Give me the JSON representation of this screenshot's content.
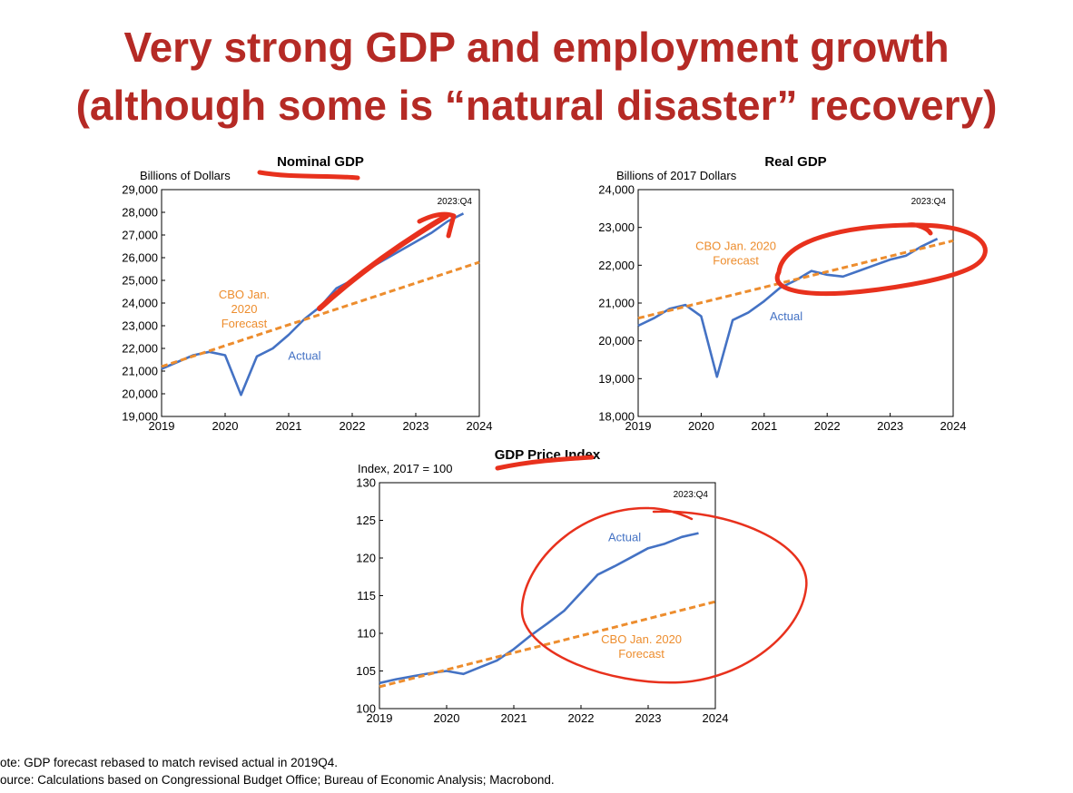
{
  "title": {
    "line1": "Very strong GDP and employment growth",
    "line2": "(although some is “natural disaster” recovery)"
  },
  "colors": {
    "title": "#b52a25",
    "actual": "#4472c4",
    "forecast": "#ed8d2e",
    "annotation": "#e8311d"
  },
  "chart_data": [
    {
      "id": "nominal",
      "type": "line",
      "title": "Nominal GDP",
      "ylabel": "Billions of Dollars",
      "xlim": [
        2019,
        2024
      ],
      "ylim": [
        19000,
        29000
      ],
      "yticks": [
        19000,
        20000,
        21000,
        22000,
        23000,
        24000,
        25000,
        26000,
        27000,
        28000,
        29000
      ],
      "ytick_labels": [
        "19,000",
        "20,000",
        "21,000",
        "22,000",
        "23,000",
        "24,000",
        "25,000",
        "26,000",
        "27,000",
        "28,000",
        "29,000"
      ],
      "xticks": [
        2019,
        2020,
        2021,
        2022,
        2023,
        2024
      ],
      "xtick_labels": [
        "2019",
        "2020",
        "2021",
        "2022",
        "2023",
        "2024"
      ],
      "corner_label": "2023:Q4",
      "series": [
        {
          "label": "Actual",
          "style": "solid",
          "x": [
            2019.0,
            2019.25,
            2019.5,
            2019.75,
            2020.0,
            2020.25,
            2020.5,
            2020.75,
            2021.0,
            2021.25,
            2021.5,
            2021.75,
            2022.0,
            2022.25,
            2022.5,
            2022.75,
            2023.0,
            2023.25,
            2023.5,
            2023.75
          ],
          "y": [
            21100,
            21400,
            21700,
            21850,
            21700,
            19950,
            21650,
            22000,
            22600,
            23300,
            23850,
            24650,
            25000,
            25500,
            25900,
            26300,
            26700,
            27100,
            27600,
            27950
          ]
        },
        {
          "label": "CBO Jan. 2020 Forecast",
          "style": "dashed",
          "x": [
            2019.0,
            2024.0
          ],
          "y": [
            21200,
            25800
          ]
        }
      ],
      "annotations": [
        {
          "series": "Actual",
          "lines": [
            "Actual"
          ],
          "x": 2021.25,
          "y": 21500
        },
        {
          "series": "CBO Jan. 2020 Forecast",
          "lines": [
            "CBO Jan.",
            "2020",
            "Forecast"
          ],
          "x": 2020.3,
          "y": 24200
        }
      ]
    },
    {
      "id": "real",
      "type": "line",
      "title": "Real GDP",
      "ylabel": "Billions of 2017 Dollars",
      "xlim": [
        2019,
        2024
      ],
      "ylim": [
        18000,
        24000
      ],
      "yticks": [
        18000,
        19000,
        20000,
        21000,
        22000,
        23000,
        24000
      ],
      "ytick_labels": [
        "18,000",
        "19,000",
        "20,000",
        "21,000",
        "22,000",
        "23,000",
        "24,000"
      ],
      "xticks": [
        2019,
        2020,
        2021,
        2022,
        2023,
        2024
      ],
      "xtick_labels": [
        "2019",
        "2020",
        "2021",
        "2022",
        "2023",
        "2024"
      ],
      "corner_label": "2023:Q4",
      "series": [
        {
          "label": "Actual",
          "style": "solid",
          "x": [
            2019.0,
            2019.25,
            2019.5,
            2019.75,
            2020.0,
            2020.25,
            2020.5,
            2020.75,
            2021.0,
            2021.25,
            2021.5,
            2021.75,
            2022.0,
            2022.25,
            2022.5,
            2022.75,
            2023.0,
            2023.25,
            2023.5,
            2023.75
          ],
          "y": [
            20400,
            20600,
            20850,
            20950,
            20650,
            19050,
            20550,
            20750,
            21050,
            21400,
            21600,
            21850,
            21750,
            21700,
            21850,
            22000,
            22150,
            22250,
            22500,
            22700
          ]
        },
        {
          "label": "CBO Jan. 2020 Forecast",
          "style": "dashed",
          "x": [
            2019.0,
            2024.0
          ],
          "y": [
            20600,
            22650
          ]
        }
      ],
      "annotations": [
        {
          "series": "Actual",
          "lines": [
            "Actual"
          ],
          "x": 2021.35,
          "y": 20550
        },
        {
          "series": "CBO Jan. 2020 Forecast",
          "lines": [
            "CBO Jan. 2020",
            "Forecast"
          ],
          "x": 2020.55,
          "y": 22400
        }
      ]
    },
    {
      "id": "price",
      "type": "line",
      "title": "GDP Price Index",
      "ylabel": "Index, 2017 = 100",
      "xlim": [
        2019,
        2024
      ],
      "ylim": [
        100,
        130
      ],
      "yticks": [
        100,
        105,
        110,
        115,
        120,
        125,
        130
      ],
      "ytick_labels": [
        "100",
        "105",
        "110",
        "115",
        "120",
        "125",
        "130"
      ],
      "xticks": [
        2019,
        2020,
        2021,
        2022,
        2023,
        2024
      ],
      "xtick_labels": [
        "2019",
        "2020",
        "2021",
        "2022",
        "2023",
        "2024"
      ],
      "corner_label": "2023:Q4",
      "series": [
        {
          "label": "Actual",
          "style": "solid",
          "x": [
            2019.0,
            2019.25,
            2019.5,
            2019.75,
            2020.0,
            2020.25,
            2020.5,
            2020.75,
            2021.0,
            2021.25,
            2021.5,
            2021.75,
            2022.0,
            2022.25,
            2022.5,
            2022.75,
            2023.0,
            2023.25,
            2023.5,
            2023.75
          ],
          "y": [
            103.4,
            103.9,
            104.3,
            104.7,
            105.0,
            104.6,
            105.5,
            106.4,
            107.9,
            109.7,
            111.3,
            113.0,
            115.4,
            117.8,
            118.9,
            120.1,
            121.3,
            121.9,
            122.8,
            123.3
          ]
        },
        {
          "label": "CBO Jan. 2020 Forecast",
          "style": "dashed",
          "x": [
            2019.0,
            2024.0
          ],
          "y": [
            102.9,
            114.2
          ]
        }
      ],
      "annotations": [
        {
          "series": "Actual",
          "lines": [
            "Actual"
          ],
          "x": 2022.65,
          "y": 122.2
        },
        {
          "series": "CBO Jan. 2020 Forecast",
          "lines": [
            "CBO Jan. 2020",
            "Forecast"
          ],
          "x": 2022.9,
          "y": 108.7
        }
      ]
    }
  ],
  "footer": {
    "note": "ote: GDP forecast rebased to match revised actual in 2019Q4.",
    "source": "ource: Calculations based on Congressional Budget Office; Bureau of Economic Analysis; Macrobond."
  }
}
